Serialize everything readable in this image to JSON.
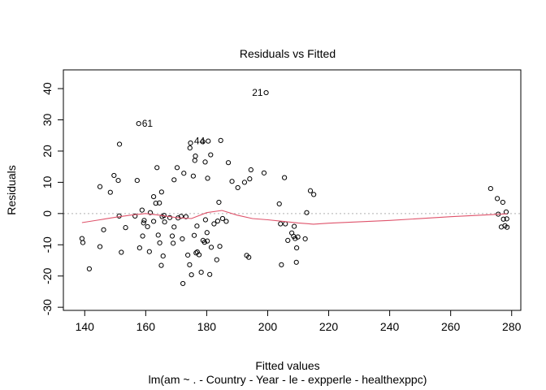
{
  "chart_data": {
    "type": "scatter",
    "title": "Residuals vs Fitted",
    "xlabel": "Fitted values",
    "ylabel": "Residuals",
    "subtitle": "lm(am ~ . - Country - Year - le - expperle - healthexppc)",
    "xlim": [
      133,
      283
    ],
    "ylim": [
      -31,
      46
    ],
    "xticks": [
      140,
      160,
      180,
      200,
      220,
      240,
      260,
      280
    ],
    "yticks": [
      -30,
      -20,
      -10,
      0,
      10,
      20,
      30,
      40
    ],
    "grid": false,
    "zero_line": {
      "y": 0,
      "color": "#b0b0b0",
      "style": "dotted"
    },
    "smooth_color": "#df536b",
    "points": [
      {
        "x": 139.1,
        "y": -8.0
      },
      {
        "x": 139.4,
        "y": -9.3
      },
      {
        "x": 141.5,
        "y": -17.7
      },
      {
        "x": 145.0,
        "y": -10.6
      },
      {
        "x": 145.0,
        "y": 8.6
      },
      {
        "x": 146.2,
        "y": -5.2
      },
      {
        "x": 148.4,
        "y": 6.8
      },
      {
        "x": 149.6,
        "y": 12.2
      },
      {
        "x": 151.0,
        "y": 10.6
      },
      {
        "x": 151.4,
        "y": 22.2
      },
      {
        "x": 151.3,
        "y": -0.8
      },
      {
        "x": 152.0,
        "y": -12.4
      },
      {
        "x": 153.4,
        "y": -4.5
      },
      {
        "x": 156.5,
        "y": -0.8
      },
      {
        "x": 157.2,
        "y": 10.6
      },
      {
        "x": 157.7,
        "y": 28.8
      },
      {
        "x": 158.0,
        "y": -11.0
      },
      {
        "x": 158.8,
        "y": 1.1
      },
      {
        "x": 159.3,
        "y": -3.0
      },
      {
        "x": 159.5,
        "y": -2.2
      },
      {
        "x": 159.0,
        "y": -7.2
      },
      {
        "x": 160.6,
        "y": -4.2
      },
      {
        "x": 161.2,
        "y": -12.2
      },
      {
        "x": 161.5,
        "y": 0.3
      },
      {
        "x": 162.6,
        "y": -2.5
      },
      {
        "x": 162.6,
        "y": 5.4
      },
      {
        "x": 163.7,
        "y": 14.7
      },
      {
        "x": 163.3,
        "y": 3.3
      },
      {
        "x": 164.1,
        "y": -6.9
      },
      {
        "x": 164.5,
        "y": 3.4
      },
      {
        "x": 164.6,
        "y": -9.4
      },
      {
        "x": 165.1,
        "y": -16.6
      },
      {
        "x": 165.4,
        "y": -1.0
      },
      {
        "x": 165.2,
        "y": 6.9
      },
      {
        "x": 165.7,
        "y": -13.6
      },
      {
        "x": 166.0,
        "y": -0.6
      },
      {
        "x": 166.2,
        "y": -2.7
      },
      {
        "x": 167.9,
        "y": -1.3
      },
      {
        "x": 168.7,
        "y": -7.2
      },
      {
        "x": 169.0,
        "y": -9.5
      },
      {
        "x": 169.3,
        "y": -4.3
      },
      {
        "x": 169.3,
        "y": 10.8
      },
      {
        "x": 170.3,
        "y": 14.7
      },
      {
        "x": 170.6,
        "y": -1.4
      },
      {
        "x": 171.6,
        "y": -0.9
      },
      {
        "x": 172.0,
        "y": -8.1
      },
      {
        "x": 172.2,
        "y": -22.4
      },
      {
        "x": 172.5,
        "y": 12.9
      },
      {
        "x": 173.2,
        "y": -1.0
      },
      {
        "x": 173.8,
        "y": -13.3
      },
      {
        "x": 174.4,
        "y": -16.4
      },
      {
        "x": 174.5,
        "y": 21.0
      },
      {
        "x": 174.7,
        "y": 22.6
      },
      {
        "x": 175.0,
        "y": -19.6
      },
      {
        "x": 175.6,
        "y": 12.0
      },
      {
        "x": 175.9,
        "y": -7.0
      },
      {
        "x": 176.1,
        "y": 17.0
      },
      {
        "x": 176.3,
        "y": 18.4
      },
      {
        "x": 176.5,
        "y": -12.6
      },
      {
        "x": 176.8,
        "y": -4.0
      },
      {
        "x": 176.9,
        "y": -12.3
      },
      {
        "x": 177.5,
        "y": -13.2
      },
      {
        "x": 178.2,
        "y": -18.8
      },
      {
        "x": 178.7,
        "y": 23.0
      },
      {
        "x": 178.8,
        "y": -8.6
      },
      {
        "x": 179.3,
        "y": -9.2
      },
      {
        "x": 179.5,
        "y": 16.5
      },
      {
        "x": 179.6,
        "y": -2.0
      },
      {
        "x": 180.1,
        "y": -6.1
      },
      {
        "x": 180.2,
        "y": -8.8
      },
      {
        "x": 180.3,
        "y": 11.3
      },
      {
        "x": 180.5,
        "y": 23.2
      },
      {
        "x": 181.0,
        "y": -19.5
      },
      {
        "x": 181.3,
        "y": 18.8
      },
      {
        "x": 181.5,
        "y": -10.8
      },
      {
        "x": 182.4,
        "y": -3.3
      },
      {
        "x": 183.3,
        "y": -14.8
      },
      {
        "x": 183.6,
        "y": -2.4
      },
      {
        "x": 184.0,
        "y": 3.6
      },
      {
        "x": 184.3,
        "y": -10.5
      },
      {
        "x": 184.6,
        "y": 23.4
      },
      {
        "x": 185.2,
        "y": -1.6
      },
      {
        "x": 186.4,
        "y": -2.5
      },
      {
        "x": 187.1,
        "y": 16.3
      },
      {
        "x": 188.3,
        "y": 10.3
      },
      {
        "x": 190.2,
        "y": 8.3
      },
      {
        "x": 192.4,
        "y": 10.0
      },
      {
        "x": 193.1,
        "y": -13.4
      },
      {
        "x": 193.8,
        "y": -14.0
      },
      {
        "x": 194.1,
        "y": 11.1
      },
      {
        "x": 194.5,
        "y": 14.0
      },
      {
        "x": 198.8,
        "y": 13.0
      },
      {
        "x": 199.5,
        "y": 38.7
      },
      {
        "x": 203.8,
        "y": 3.1
      },
      {
        "x": 204.2,
        "y": -3.3
      },
      {
        "x": 204.5,
        "y": -16.4
      },
      {
        "x": 205.5,
        "y": 11.5
      },
      {
        "x": 205.8,
        "y": -3.3
      },
      {
        "x": 206.6,
        "y": -8.6
      },
      {
        "x": 207.9,
        "y": -6.2
      },
      {
        "x": 208.5,
        "y": -7.3
      },
      {
        "x": 208.7,
        "y": -4.1
      },
      {
        "x": 209.0,
        "y": -8.0
      },
      {
        "x": 209.5,
        "y": -11.0
      },
      {
        "x": 209.4,
        "y": -15.6
      },
      {
        "x": 209.9,
        "y": -7.5
      },
      {
        "x": 212.3,
        "y": -8.1
      },
      {
        "x": 212.8,
        "y": 0.3
      },
      {
        "x": 214.0,
        "y": 7.3
      },
      {
        "x": 215.1,
        "y": 6.1
      },
      {
        "x": 273.1,
        "y": 8.0
      },
      {
        "x": 275.3,
        "y": 4.8
      },
      {
        "x": 275.6,
        "y": -0.2
      },
      {
        "x": 276.6,
        "y": -4.3
      },
      {
        "x": 277.1,
        "y": 3.6
      },
      {
        "x": 277.3,
        "y": -1.8
      },
      {
        "x": 277.8,
        "y": -3.9
      },
      {
        "x": 278.2,
        "y": 0.5
      },
      {
        "x": 278.4,
        "y": -1.7
      },
      {
        "x": 278.5,
        "y": -4.4
      }
    ],
    "labeled_points": [
      {
        "x": 199.5,
        "y": 38.7,
        "label": "21",
        "side": "left"
      },
      {
        "x": 157.7,
        "y": 28.8,
        "label": "61",
        "side": "right"
      },
      {
        "x": 180.5,
        "y": 23.2,
        "label": "44",
        "side": "left"
      }
    ],
    "smooth_line": [
      {
        "x": 139.1,
        "y": -2.9
      },
      {
        "x": 145,
        "y": -2.0
      },
      {
        "x": 150,
        "y": -1.2
      },
      {
        "x": 155,
        "y": -0.5
      },
      {
        "x": 160,
        "y": 0.0
      },
      {
        "x": 165,
        "y": -0.6
      },
      {
        "x": 170,
        "y": -1.3
      },
      {
        "x": 175,
        "y": -1.6
      },
      {
        "x": 180,
        "y": 0.3
      },
      {
        "x": 185,
        "y": 1.0
      },
      {
        "x": 190,
        "y": -0.5
      },
      {
        "x": 195,
        "y": -1.6
      },
      {
        "x": 200,
        "y": -2.0
      },
      {
        "x": 205,
        "y": -2.5
      },
      {
        "x": 210,
        "y": -3.0
      },
      {
        "x": 215,
        "y": -3.4
      },
      {
        "x": 220,
        "y": -3.1
      },
      {
        "x": 240,
        "y": -2.2
      },
      {
        "x": 260,
        "y": -1.0
      },
      {
        "x": 278.5,
        "y": -0.1
      }
    ]
  }
}
